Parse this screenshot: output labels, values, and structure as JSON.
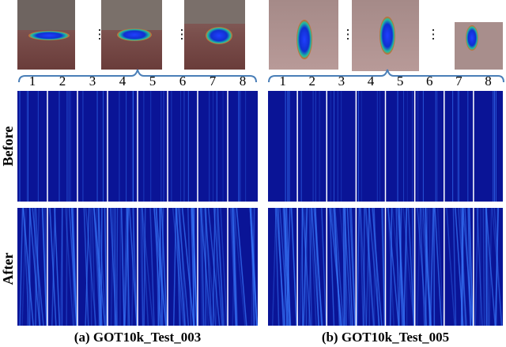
{
  "row_labels": [
    "Before",
    "After"
  ],
  "panels": [
    {
      "columns": [
        1,
        2,
        3,
        4,
        5,
        6,
        7,
        8
      ],
      "caption": "(a) GOT10k_Test_003"
    },
    {
      "columns": [
        1,
        2,
        3,
        4,
        5,
        6,
        7,
        8
      ],
      "caption": "(b) GOT10k_Test_005"
    }
  ]
}
